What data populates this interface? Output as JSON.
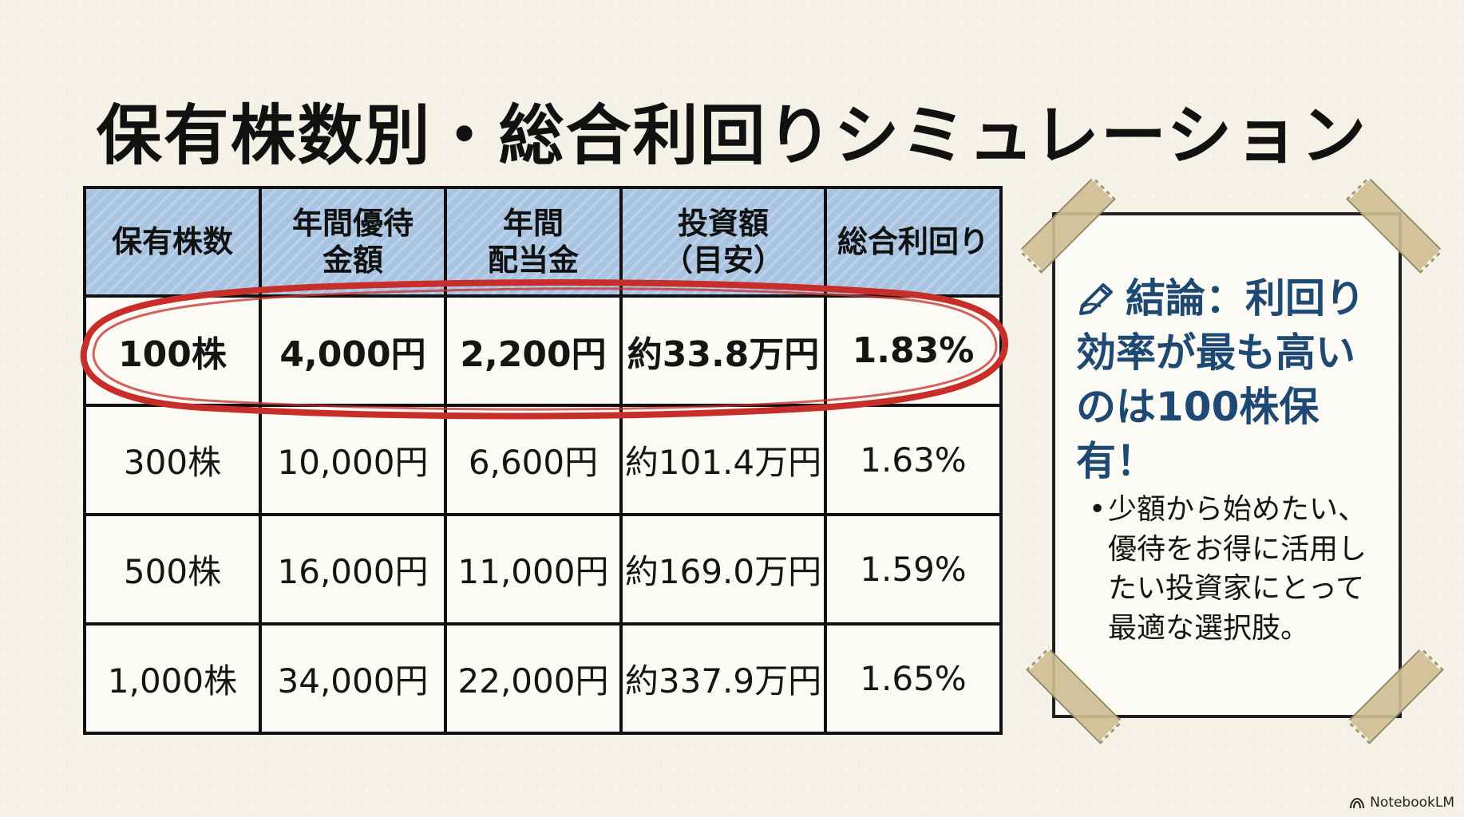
{
  "title": "保有株数別・総合利回りシミュレーション",
  "table": {
    "headers": [
      {
        "line1": "保有株数",
        "line2": ""
      },
      {
        "line1": "年間優待",
        "line2": "金額"
      },
      {
        "line1": "年間",
        "line2": "配当金"
      },
      {
        "line1": "投資額",
        "line2": "（目安）"
      },
      {
        "line1": "総合利回り",
        "line2": ""
      }
    ],
    "rows": [
      [
        "100株",
        "4,000円",
        "2,200円",
        "約33.8万円",
        "1.83%"
      ],
      [
        "300株",
        "10,000円",
        "6,600円",
        "約101.4万円",
        "1.63%"
      ],
      [
        "500株",
        "16,000円",
        "11,000円",
        "約169.0万円",
        "1.59%"
      ],
      [
        "1,000株",
        "34,000円",
        "22,000円",
        "約337.9万円",
        "1.65%"
      ]
    ]
  },
  "note": {
    "heading_line1": "結論：利回り",
    "heading_line2": "効率が最も高い",
    "heading_line3": "のは100株保有！",
    "bullet_line1": "少額から始めたい、",
    "bullet_line2": "優待をお得に活用し",
    "bullet_line3": "たい投資家にとって",
    "bullet_line4": "最適な選択肢。"
  },
  "brand": {
    "label": "NotebookLM"
  },
  "colors": {
    "background": "#f4f1e6",
    "header": "#a8c4e1",
    "highlight": "#c72e2a",
    "note_text": "#1d4973"
  },
  "icons": {
    "pen": "pen-writing-icon",
    "brand": "notebooklm-icon"
  }
}
